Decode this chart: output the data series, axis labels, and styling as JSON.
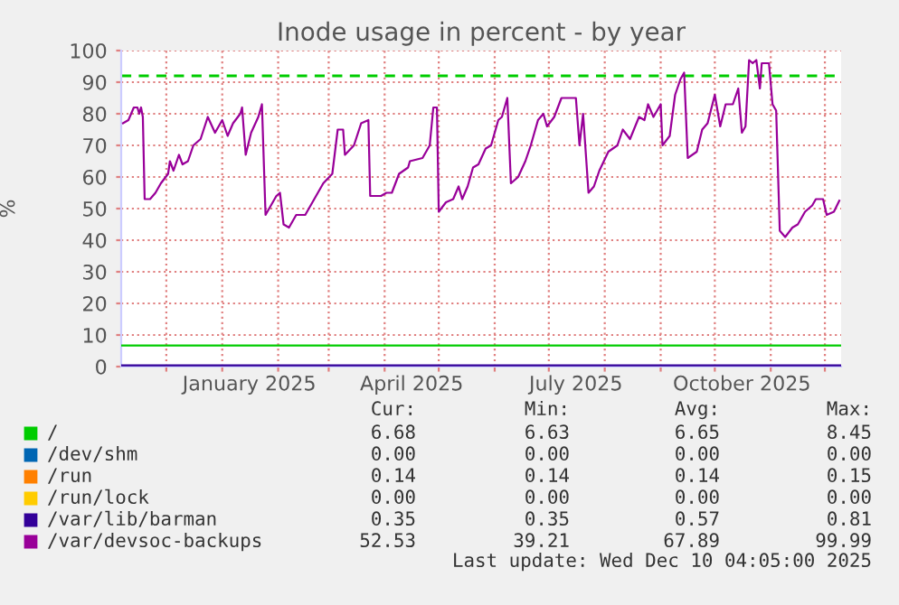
{
  "chart_data": {
    "type": "line",
    "title": "Inode usage in percent - by year",
    "ylabel": "%",
    "xlim": [
      "2024-11-06",
      "2025-12-10"
    ],
    "ylim": [
      0,
      100
    ],
    "yticks": [
      0,
      10,
      20,
      30,
      40,
      50,
      60,
      70,
      80,
      90,
      100
    ],
    "xticks": [
      {
        "value": "2024-12-01",
        "label": null
      },
      {
        "value": "2025-01-01",
        "label": null
      },
      {
        "value": "2025-02-01",
        "label": null
      },
      {
        "value": "2025-03-01",
        "label": null
      },
      {
        "value": "2025-04-01",
        "label": null
      },
      {
        "value": "2025-05-01",
        "label": null
      },
      {
        "value": "2025-06-01",
        "label": null
      },
      {
        "value": "2025-07-01",
        "label": null
      },
      {
        "value": "2025-08-01",
        "label": null
      },
      {
        "value": "2025-09-01",
        "label": null
      },
      {
        "value": "2025-10-01",
        "label": null
      },
      {
        "value": "2025-11-01",
        "label": null
      },
      {
        "value": "2025-12-01",
        "label": null
      },
      {
        "value": "2025-01-16",
        "label": "January 2025"
      },
      {
        "value": "2025-04-16",
        "label": "April 2025"
      },
      {
        "value": "2025-07-16",
        "label": "July 2025"
      },
      {
        "value": "2025-10-16",
        "label": "October 2025"
      }
    ],
    "grid": true,
    "legend": "bottom",
    "marker": "none",
    "line_style": "solid",
    "ref_lines": [
      {
        "axis": "y",
        "value": 92,
        "color": "#00cc00",
        "line_style": "dashed"
      }
    ],
    "series": [
      {
        "name": "/",
        "color": "#00cc00",
        "x": [
          "2024-11-06",
          "2025-12-10"
        ],
        "values": [
          6.7,
          6.7
        ]
      },
      {
        "name": "/dev/shm",
        "color": "#0066b3"
      },
      {
        "name": "/run",
        "color": "#ff8000"
      },
      {
        "name": "/run/lock",
        "color": "#ffcc00"
      },
      {
        "name": "/var/lib/barman",
        "color": "#330099",
        "x": [
          "2024-11-06",
          "2025-12-10"
        ],
        "values": [
          0.4,
          0.4
        ]
      },
      {
        "name": "/var/devsoc-backups",
        "color": "#990099",
        "x": [
          "2024-11-07",
          "2024-11-10",
          "2024-11-13",
          "2024-11-15",
          "2024-11-16",
          "2024-11-17",
          "2024-11-18",
          "2024-11-19",
          "2024-11-22",
          "2024-11-25",
          "2024-11-28",
          "2024-12-02",
          "2024-12-03",
          "2024-12-05",
          "2024-12-08",
          "2024-12-10",
          "2024-12-13",
          "2024-12-16",
          "2024-12-20",
          "2024-12-24",
          "2024-12-28",
          "2025-01-01",
          "2025-01-04",
          "2025-01-07",
          "2025-01-11",
          "2025-01-12",
          "2025-01-14",
          "2025-01-17",
          "2025-01-21",
          "2025-01-23",
          "2025-01-25",
          "2025-01-31",
          "2025-02-02",
          "2025-02-04",
          "2025-02-07",
          "2025-02-11",
          "2025-02-16",
          "2025-02-21",
          "2025-02-26",
          "2025-03-03",
          "2025-03-06",
          "2025-03-09",
          "2025-03-10",
          "2025-03-15",
          "2025-03-19",
          "2025-03-23",
          "2025-03-24",
          "2025-03-30",
          "2025-04-02",
          "2025-04-05",
          "2025-04-09",
          "2025-04-14",
          "2025-04-15",
          "2025-04-22",
          "2025-04-26",
          "2025-04-28",
          "2025-04-30",
          "2025-05-01",
          "2025-05-05",
          "2025-05-09",
          "2025-05-12",
          "2025-05-14",
          "2025-05-17",
          "2025-05-20",
          "2025-05-23",
          "2025-05-27",
          "2025-05-30",
          "2025-06-03",
          "2025-06-05",
          "2025-06-08",
          "2025-06-10",
          "2025-06-14",
          "2025-06-18",
          "2025-06-21",
          "2025-06-25",
          "2025-06-28",
          "2025-06-30",
          "2025-07-04",
          "2025-07-08",
          "2025-07-16",
          "2025-07-18",
          "2025-07-20",
          "2025-07-23",
          "2025-07-26",
          "2025-07-29",
          "2025-08-03",
          "2025-08-08",
          "2025-08-11",
          "2025-08-15",
          "2025-08-20",
          "2025-08-23",
          "2025-08-25",
          "2025-08-28",
          "2025-09-01",
          "2025-09-02",
          "2025-09-06",
          "2025-09-09",
          "2025-09-12",
          "2025-09-14",
          "2025-09-16",
          "2025-09-21",
          "2025-09-24",
          "2025-09-27",
          "2025-10-01",
          "2025-10-04",
          "2025-10-07",
          "2025-10-11",
          "2025-10-14",
          "2025-10-16",
          "2025-10-18",
          "2025-10-20",
          "2025-10-22",
          "2025-10-24",
          "2025-10-26",
          "2025-10-27",
          "2025-10-31",
          "2025-11-02",
          "2025-11-04",
          "2025-11-06",
          "2025-11-09",
          "2025-11-13",
          "2025-11-16",
          "2025-11-20",
          "2025-11-24",
          "2025-11-26",
          "2025-11-30",
          "2025-12-02",
          "2025-12-06",
          "2025-12-09"
        ],
        "values": [
          77,
          78,
          82,
          82,
          80,
          82,
          79,
          53,
          53,
          55,
          58,
          61,
          65,
          62,
          67,
          64,
          65,
          70,
          72,
          79,
          74,
          78,
          73,
          77,
          80,
          82,
          67,
          74,
          79,
          83,
          48,
          54,
          55,
          45,
          44,
          48,
          48,
          53,
          58,
          61,
          75,
          75,
          67,
          70,
          77,
          78,
          54,
          54,
          55,
          55,
          61,
          63,
          65,
          66,
          70,
          82,
          82,
          49,
          52,
          53,
          57,
          53,
          57,
          63,
          64,
          69,
          70,
          78,
          79,
          85,
          58,
          60,
          65,
          70,
          78,
          80,
          76,
          79,
          85,
          85,
          70,
          80,
          55,
          57,
          62,
          68,
          70,
          75,
          72,
          79,
          78,
          83,
          79,
          83,
          70,
          73,
          86,
          91,
          93,
          66,
          68,
          75,
          77,
          86,
          76,
          83,
          83,
          88,
          74,
          76,
          97,
          96,
          97,
          88,
          96,
          96,
          83,
          81,
          43,
          41,
          44,
          45,
          49,
          51,
          53,
          53,
          48,
          49,
          52.5
        ]
      }
    ],
    "annotations": [
      "Cur:",
      "Min:",
      "Avg:",
      "Max:",
      "6.68",
      "6.63",
      "6.65",
      "8.45",
      "0.00",
      "0.00",
      "0.00",
      "0.00",
      "0.14",
      "0.14",
      "0.14",
      "0.15",
      "0.00",
      "0.00",
      "0.00",
      "0.00",
      "0.35",
      "0.35",
      "0.57",
      "0.81",
      "52.53",
      "39.21",
      "67.89",
      "99.99",
      "Last update: Wed Dec 10 04:05:00 2025"
    ]
  }
}
